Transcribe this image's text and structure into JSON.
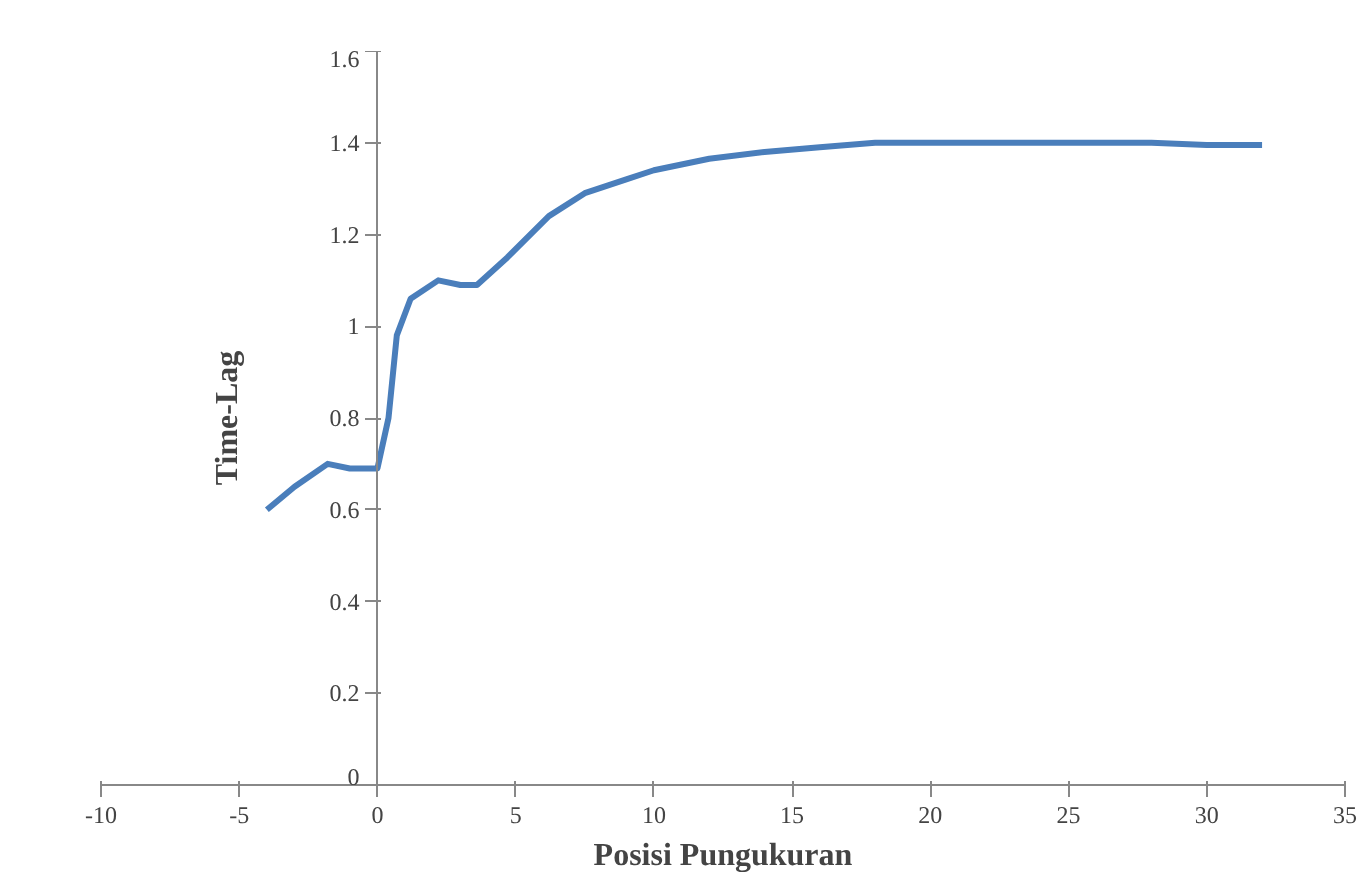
{
  "chart_data": {
    "type": "line",
    "xlabel": "Posisi Pungukuran",
    "ylabel": "Time-Lag",
    "x": [
      -4,
      -3,
      -1.8,
      -1,
      0,
      0.4,
      0.7,
      1.2,
      2.2,
      3,
      3.6,
      4.7,
      6.2,
      7.5,
      9,
      10,
      12,
      14,
      16,
      18,
      20,
      22,
      25,
      28,
      30,
      32
    ],
    "series": [
      {
        "color": "#4a7ebb",
        "values": [
          0.6,
          0.65,
          0.7,
          0.69,
          0.69,
          0.8,
          0.98,
          1.06,
          1.1,
          1.09,
          1.09,
          1.15,
          1.24,
          1.29,
          1.32,
          1.34,
          1.365,
          1.38,
          1.39,
          1.4,
          1.4,
          1.4,
          1.4,
          1.4,
          1.395,
          1.395
        ]
      }
    ],
    "xlim": [
      -10,
      35
    ],
    "ylim": [
      0,
      1.6
    ],
    "xticks": [
      -10,
      -5,
      0,
      5,
      10,
      15,
      20,
      25,
      30,
      35
    ],
    "yticks": [
      0,
      0.2,
      0.4,
      0.6,
      0.8,
      1,
      1.2,
      1.4,
      1.6
    ],
    "grid": false,
    "marker": "none",
    "line_style": "solid"
  }
}
